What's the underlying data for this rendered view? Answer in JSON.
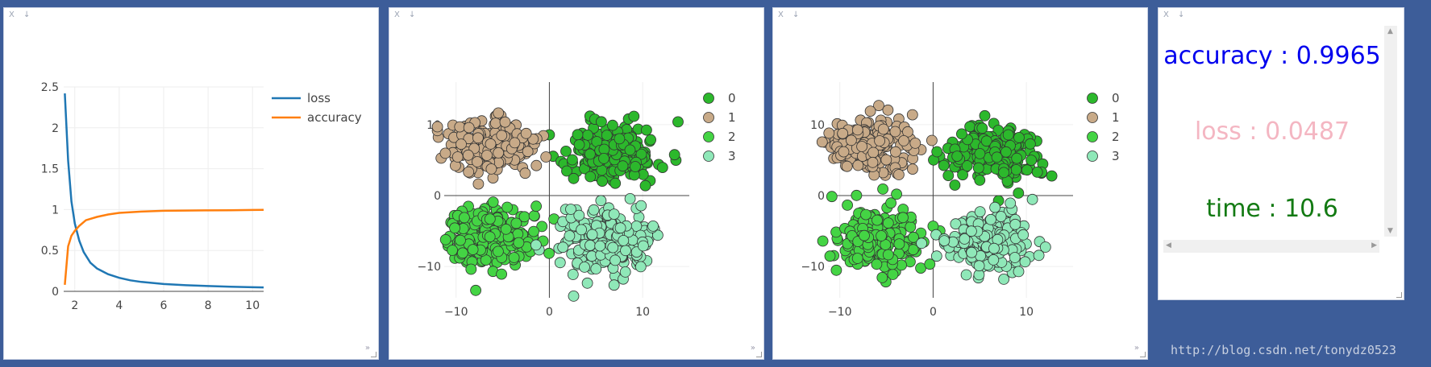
{
  "window_controls": {
    "close": "X",
    "download": "↓"
  },
  "corner_arrow": "»",
  "charts": [
    {
      "type": "line",
      "xlim": [
        1.5,
        10.5
      ],
      "ylim": [
        0,
        2.5
      ],
      "xticks": [
        2,
        4,
        6,
        8,
        10
      ],
      "yticks": [
        0,
        0.5,
        1,
        1.5,
        2,
        2.5
      ],
      "legend": "top-right",
      "series": [
        {
          "name": "loss",
          "color": "#1f77b4",
          "x": [
            1.55,
            1.7,
            1.85,
            2.0,
            2.2,
            2.4,
            2.7,
            3.0,
            3.5,
            4.0,
            4.5,
            5.0,
            6.0,
            7.0,
            8.0,
            9.0,
            10.0,
            10.5
          ],
          "y": [
            2.42,
            1.6,
            1.1,
            0.83,
            0.62,
            0.48,
            0.35,
            0.28,
            0.21,
            0.165,
            0.135,
            0.115,
            0.09,
            0.075,
            0.065,
            0.057,
            0.05,
            0.048
          ]
        },
        {
          "name": "accuracy",
          "color": "#ff7f0e",
          "x": [
            1.55,
            1.7,
            1.85,
            2.0,
            2.2,
            2.5,
            3.0,
            3.5,
            4.0,
            5.0,
            6.0,
            7.0,
            8.0,
            9.0,
            10.0,
            10.5
          ],
          "y": [
            0.08,
            0.55,
            0.68,
            0.74,
            0.8,
            0.87,
            0.91,
            0.94,
            0.96,
            0.975,
            0.985,
            0.988,
            0.99,
            0.992,
            0.995,
            0.996
          ]
        }
      ]
    },
    {
      "type": "scatter",
      "xlim": [
        -13,
        15
      ],
      "ylim": [
        -16,
        16
      ],
      "xticks": [
        -10,
        0,
        10
      ],
      "yticks": [
        -10,
        0,
        10
      ],
      "legend": "top-right",
      "series": [
        {
          "name": "0",
          "color": "#2cb82c",
          "center": [
            6.5,
            6
          ],
          "spread": [
            2.4,
            2.0
          ],
          "count": 210
        },
        {
          "name": "1",
          "color": "#c8aa88",
          "center": [
            -6.5,
            7
          ],
          "spread": [
            2.2,
            1.9
          ],
          "count": 210
        },
        {
          "name": "2",
          "color": "#44d444",
          "center": [
            -6,
            -6
          ],
          "spread": [
            2.4,
            2.2
          ],
          "count": 210
        },
        {
          "name": "3",
          "color": "#8fe8b8",
          "center": [
            6,
            -6.5
          ],
          "spread": [
            2.5,
            2.3
          ],
          "count": 210
        }
      ]
    },
    {
      "type": "scatter",
      "xlim": [
        -13,
        15
      ],
      "ylim": [
        -16,
        16
      ],
      "xticks": [
        -10,
        0,
        10
      ],
      "yticks": [
        -10,
        0,
        10
      ],
      "legend": "top-right",
      "series": [
        {
          "name": "0",
          "color": "#2cb82c",
          "center": [
            6.5,
            6
          ],
          "spread": [
            2.4,
            2.0
          ],
          "count": 210
        },
        {
          "name": "1",
          "color": "#c8aa88",
          "center": [
            -6.5,
            7
          ],
          "spread": [
            2.2,
            1.9
          ],
          "count": 210
        },
        {
          "name": "2",
          "color": "#44d444",
          "center": [
            -6,
            -6
          ],
          "spread": [
            2.4,
            2.2
          ],
          "count": 210
        },
        {
          "name": "3",
          "color": "#8fe8b8",
          "center": [
            6,
            -6.5
          ],
          "spread": [
            2.5,
            2.3
          ],
          "count": 210
        }
      ]
    }
  ],
  "stats": {
    "accuracy": {
      "text": "accuracy : 0.9965",
      "color": "#0000ee"
    },
    "loss": {
      "text": "loss : 0.0487",
      "color": "#f4b6c2"
    },
    "time": {
      "text": "time : 10.6",
      "color": "#137a13"
    }
  },
  "watermark": "http://blog.csdn.net/tonydz0523"
}
